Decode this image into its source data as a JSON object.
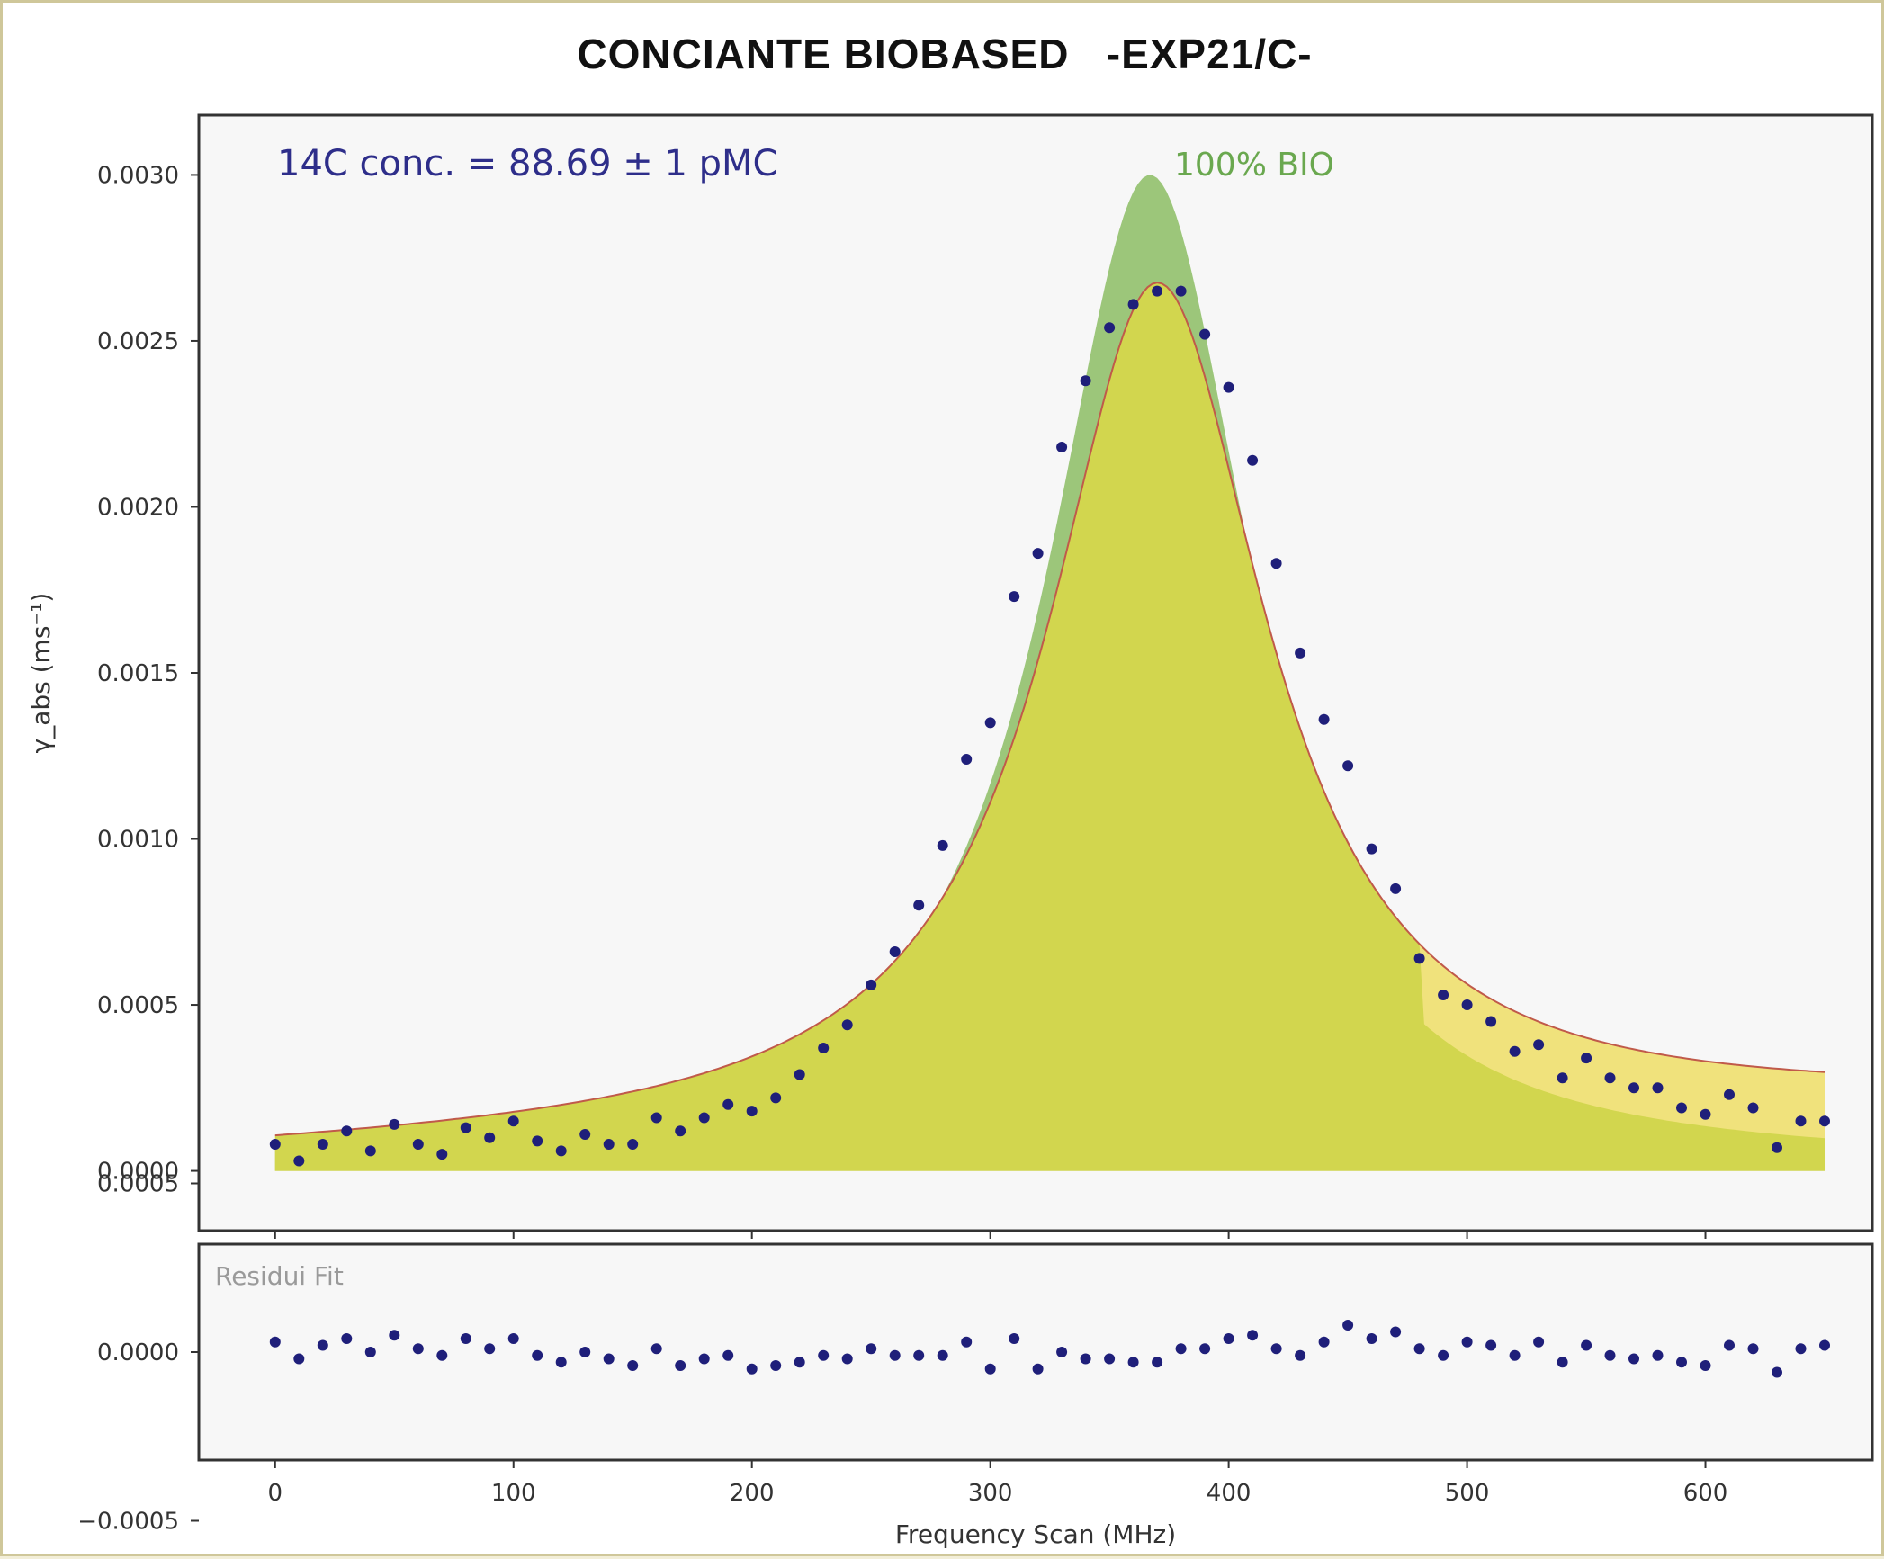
{
  "title": "CONCIANTE BIOBASED   -EXP21/C-",
  "chart_data": [
    {
      "type": "line",
      "panel": "main",
      "annotation": "14C conc. = 88.69 ± 1 pMC",
      "reference_label": "100% BIO",
      "ylabel": "γ_abs (ms⁻¹)",
      "xlim": [
        -32,
        670
      ],
      "ylim": [
        -0.00018,
        0.00318
      ],
      "yticks": [
        "0.0000",
        "0.0005",
        "0.0010",
        "0.0015",
        "0.0020",
        "0.0025",
        "0.0030"
      ],
      "ytick_values": [
        0,
        0.0005,
        0.001,
        0.0015,
        0.002,
        0.0025,
        0.003
      ],
      "colors": {
        "reference_fill": "#9cc67a",
        "sample_fill": "#d2d64e",
        "tail_fill": "#f0e27c",
        "fit_line": "#c05a4a",
        "points": "#1f1f7a",
        "annotation": "#2e2e8a",
        "reference_label": "#6aa84f",
        "axes_bg": "#f7f7f7"
      },
      "series": [
        {
          "name": "",
          "kind": "points",
          "x": [
            0,
            10,
            20,
            30,
            40,
            50,
            60,
            70,
            80,
            90,
            100,
            110,
            120,
            130,
            140,
            150,
            160,
            170,
            180,
            190,
            200,
            210,
            220,
            230,
            240,
            250,
            260,
            270,
            280,
            290,
            300,
            310,
            320,
            330,
            340,
            350,
            360,
            370,
            380,
            390,
            400,
            410,
            420,
            430,
            440,
            450,
            460,
            470,
            480,
            490,
            500,
            510,
            520,
            530,
            540,
            550,
            560,
            570,
            580,
            590,
            600,
            610,
            620,
            630,
            640,
            650
          ],
          "y": [
            8e-05,
            3e-05,
            8e-05,
            0.00012,
            6e-05,
            0.00014,
            8e-05,
            5e-05,
            0.00013,
            0.0001,
            0.00015,
            9e-05,
            6e-05,
            0.00011,
            8e-05,
            8e-05,
            0.00016,
            0.00012,
            0.00016,
            0.0002,
            0.00018,
            0.00022,
            0.00029,
            0.00037,
            0.00044,
            0.00056,
            0.00066,
            0.0008,
            0.00098,
            0.00124,
            0.00135,
            0.00173,
            0.00186,
            0.00218,
            0.00238,
            0.00254,
            0.00261,
            0.00265,
            0.00265,
            0.00252,
            0.00236,
            0.00214,
            0.00183,
            0.00156,
            0.00136,
            0.00122,
            0.00097,
            0.00085,
            0.00064,
            0.00053,
            0.0005,
            0.00045,
            0.00036,
            0.00038,
            0.00028,
            0.00034,
            0.00028,
            0.00025,
            0.00025,
            0.00019,
            0.00017,
            0.00023,
            0.00019,
            7e-05,
            0.00015,
            0.00015
          ]
        }
      ]
    },
    {
      "type": "scatter",
      "panel": "residual",
      "annotation": "Residui Fit",
      "xlabel": "Frequency Scan (MHz)",
      "xlim": [
        -32,
        670
      ],
      "ylim": [
        -0.00032,
        0.00032
      ],
      "yticks": [
        "0.0005",
        "0.0000",
        "−0.0005"
      ],
      "ytick_values": [
        0.0005,
        0,
        -0.0005
      ],
      "xticks": [
        "0",
        "100",
        "200",
        "300",
        "400",
        "500",
        "600"
      ],
      "xtick_values": [
        0,
        100,
        200,
        300,
        400,
        500,
        600
      ],
      "colors": {
        "points": "#1f1f7a",
        "annotation": "#9a9a9a"
      },
      "series": [
        {
          "name": "",
          "x": [
            0,
            10,
            20,
            30,
            40,
            50,
            60,
            70,
            80,
            90,
            100,
            110,
            120,
            130,
            140,
            150,
            160,
            170,
            180,
            190,
            200,
            210,
            220,
            230,
            240,
            250,
            260,
            270,
            280,
            290,
            300,
            310,
            320,
            330,
            340,
            350,
            360,
            370,
            380,
            390,
            400,
            410,
            420,
            430,
            440,
            450,
            460,
            470,
            480,
            490,
            500,
            510,
            520,
            530,
            540,
            550,
            560,
            570,
            580,
            590,
            600,
            610,
            620,
            630,
            640,
            650
          ],
          "y": [
            3e-05,
            -2e-05,
            2e-05,
            4e-05,
            0,
            5e-05,
            1e-05,
            -1e-05,
            4e-05,
            1e-05,
            4e-05,
            -1e-05,
            -3e-05,
            0,
            -2e-05,
            -4e-05,
            1e-05,
            -4e-05,
            -2e-05,
            -1e-05,
            -5e-05,
            -4e-05,
            -3e-05,
            -1e-05,
            -2e-05,
            1e-05,
            -1e-05,
            -1e-05,
            -1e-05,
            3e-05,
            -5e-05,
            4e-05,
            -5e-05,
            0,
            -2e-05,
            -2e-05,
            -3e-05,
            -3e-05,
            1e-05,
            1e-05,
            4e-05,
            5e-05,
            1e-05,
            -1e-05,
            3e-05,
            8e-05,
            4e-05,
            6e-05,
            1e-05,
            -1e-05,
            3e-05,
            2e-05,
            -1e-05,
            3e-05,
            -3e-05,
            2e-05,
            -1e-05,
            -2e-05,
            -1e-05,
            -3e-05,
            -4e-05,
            2e-05,
            1e-05,
            -6e-05,
            1e-05,
            2e-05
          ]
        }
      ]
    }
  ]
}
